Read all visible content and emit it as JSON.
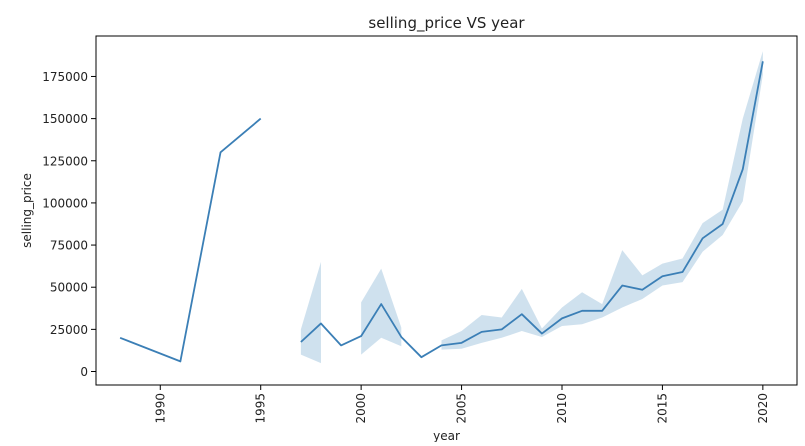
{
  "chart_data": {
    "type": "line",
    "title": "selling_price VS year",
    "xlabel": "year",
    "ylabel": "selling_price",
    "xlim": [
      1986.8,
      2021.7
    ],
    "ylim": [
      -8000,
      199000
    ],
    "x_ticks": [
      1990,
      1995,
      2000,
      2005,
      2010,
      2015,
      2020
    ],
    "x_tick_labels": [
      "1990",
      "1995",
      "2000",
      "2005",
      "2010",
      "2015",
      "2020"
    ],
    "y_ticks": [
      0,
      25000,
      50000,
      75000,
      100000,
      125000,
      150000,
      175000
    ],
    "y_tick_labels": [
      "0",
      "25000",
      "50000",
      "75000",
      "100000",
      "125000",
      "150000",
      "175000"
    ],
    "grid": false,
    "line_color": "#3b7fb6",
    "band_color": "#a8c8e0",
    "series": [
      {
        "x": [
          1988,
          1991,
          1993,
          1995,
          1997,
          1998,
          1999,
          2000,
          2001,
          2002,
          2003,
          2004,
          2005,
          2006,
          2007,
          2008,
          2009,
          2010,
          2011,
          2012,
          2013,
          2014,
          2015,
          2016,
          2017,
          2018,
          2019,
          2020
        ],
        "values": [
          20000,
          6000,
          130000,
          150000,
          17500,
          28500,
          15500,
          21000,
          40000,
          20500,
          8500,
          15500,
          17000,
          23500,
          25000,
          34000,
          22500,
          31500,
          36000,
          36000,
          51000,
          48500,
          56500,
          59000,
          79000,
          87500,
          120000,
          184000
        ]
      }
    ],
    "confidence_band": {
      "x": [
        1997,
        1998,
        2000,
        2001,
        2002,
        2004,
        2005,
        2006,
        2007,
        2008,
        2009,
        2010,
        2011,
        2012,
        2013,
        2014,
        2015,
        2016,
        2017,
        2018,
        2019,
        2020
      ],
      "lower": [
        10000,
        5000,
        10000,
        20000,
        15000,
        13000,
        13500,
        17000,
        20000,
        24000,
        20500,
        27000,
        28000,
        32000,
        38000,
        43000,
        51000,
        53000,
        71000,
        81000,
        101000,
        176000
      ],
      "upper": [
        25000,
        65000,
        41000,
        61000,
        26000,
        18500,
        24000,
        33500,
        32000,
        49000,
        25500,
        38000,
        47000,
        40000,
        72000,
        57000,
        64000,
        67000,
        88000,
        96000,
        150000,
        190000
      ]
    }
  }
}
